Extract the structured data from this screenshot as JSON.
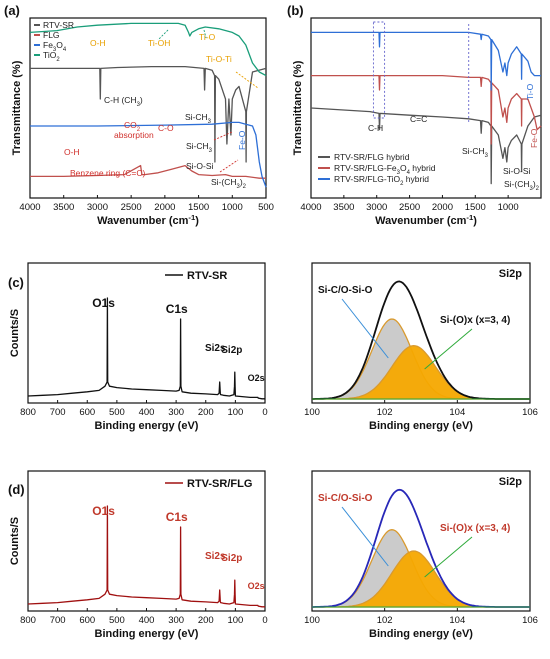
{
  "chart_data": [
    {
      "panel": "(a)",
      "type": "line",
      "xlabel": "Wavenumber (cm",
      "xlabel_sup": "-1",
      "xlabel_end": ")",
      "ylabel": "Transmittance (%)",
      "xlim": [
        4000,
        500
      ],
      "xticks": [
        "4000",
        "3500",
        "3000",
        "2500",
        "2000",
        "1500",
        "1000",
        "500"
      ],
      "legend": [
        "RTV-SR",
        "FLG",
        "Fe3O4",
        "TiO2"
      ],
      "series": [
        {
          "name": "RTV-SR",
          "color": "#555555",
          "x": [
            4000,
            3100,
            2965,
            2958,
            2950,
            2700,
            2200,
            1700,
            1420,
            1410,
            1400,
            1300,
            1262,
            1258,
            1250,
            1200,
            1100,
            1080,
            1050,
            1020,
            1000,
            950,
            900,
            800,
            795,
            790,
            700,
            500
          ],
          "y": [
            72,
            72,
            72,
            55,
            72,
            72.5,
            73,
            73,
            72,
            60,
            72,
            71,
            68,
            20,
            68,
            66,
            55,
            30,
            55,
            35,
            55,
            60,
            62,
            48,
            20,
            48,
            70,
            72
          ]
        },
        {
          "name": "FLG",
          "color": "#c0504d",
          "x": [
            4000,
            3500,
            3000,
            2600,
            2360,
            2340,
            2300,
            2100,
            1900,
            1700,
            1600,
            1500,
            1300,
            1100,
            1000,
            800,
            600,
            500
          ],
          "y": [
            12,
            12,
            12.5,
            13,
            18,
            13,
            13,
            14,
            16,
            18,
            15,
            13,
            12.5,
            13,
            12,
            12,
            11,
            11
          ]
        },
        {
          "name": "Fe3O4",
          "color": "#2e6fd6",
          "x": [
            4000,
            3000,
            2000,
            1300,
            1000,
            900,
            800,
            700,
            650,
            600,
            560,
            520,
            500
          ],
          "y": [
            40,
            40,
            40.5,
            41,
            42,
            42,
            41,
            40,
            35,
            20,
            12,
            8,
            6
          ]
        },
        {
          "name": "TiO2",
          "color": "#1a9e7a",
          "x": [
            4000,
            3600,
            3300,
            3000,
            2500,
            2000,
            1800,
            1700,
            1650,
            1630,
            1600,
            1500,
            1400,
            1200,
            1000,
            900,
            800,
            700,
            600,
            500
          ],
          "y": [
            92,
            93,
            95,
            96,
            97,
            97,
            97,
            96,
            92,
            90,
            92,
            94,
            95,
            94,
            92,
            90,
            85,
            75,
            70,
            68
          ]
        }
      ],
      "annotations": [
        {
          "text": "O-H",
          "color": "#e8a000"
        },
        {
          "text": "Ti-OH",
          "color": "#e8a000"
        },
        {
          "text": "Ti-O",
          "color": "#e8a000"
        },
        {
          "text": "Ti-O-Ti",
          "color": "#e8a000"
        },
        {
          "text": "C-H (CH",
          "sub": "3",
          "end": ")",
          "color": "#222222"
        },
        {
          "text": "Si-CH",
          "sub": "3",
          "end": "",
          "color": "#222222"
        },
        {
          "text": "Si-CH",
          "sub": "3",
          "end": "",
          "color": "#222222"
        },
        {
          "text": "Si-O-Si",
          "color": "#222222"
        },
        {
          "text": "Si-(CH",
          "sub": "3",
          "end": ")",
          "sub2": "2",
          "color": "#222222"
        },
        {
          "text": "Fe-O",
          "color": "#2e6fd6"
        },
        {
          "text": "O-H",
          "color": "#d0312d"
        },
        {
          "text": "CO",
          "sub": "2",
          "end": "",
          "color": "#d0312d"
        },
        {
          "text": "absorption",
          "color": "#d0312d"
        },
        {
          "text": "C-O",
          "color": "#d0312d"
        },
        {
          "text": "Benzene ring (C=C)",
          "color": "#d0312d"
        }
      ]
    },
    {
      "panel": "(b)",
      "type": "line",
      "xlabel": "Wavenumber (cm",
      "xlabel_sup": "-1",
      "xlabel_end": ")",
      "ylabel": "Transmittance (%)",
      "xlim": [
        4000,
        500
      ],
      "xticks": [
        "4000",
        "3500",
        "3000",
        "2500",
        "2000",
        "1500",
        "1000"
      ],
      "legend": [
        "RTV-SR/FLG hybrid",
        "RTV-SR/FLG-Fe3O4 hybrid",
        "RTV-SR/FLG-TiO2 hybrid"
      ],
      "series": [
        {
          "name": "RTV-SR/FLG hybrid",
          "color": "#555555",
          "x": [
            4000,
            3100,
            2965,
            2958,
            2950,
            2500,
            2000,
            1600,
            1420,
            1410,
            1400,
            1300,
            1262,
            1258,
            1250,
            1150,
            1080,
            1050,
            1020,
            1000,
            950,
            870,
            800,
            795,
            790,
            700,
            600,
            500
          ],
          "y": [
            50,
            48,
            47,
            38,
            47,
            46,
            45,
            44,
            43,
            36,
            43,
            42,
            40,
            8,
            40,
            35,
            22,
            28,
            20,
            28,
            32,
            35,
            30,
            15,
            30,
            40,
            45,
            46
          ]
        },
        {
          "name": "RTV-SR/FLG-Fe3O4 hybrid",
          "color": "#c0504d",
          "x": [
            4000,
            3100,
            2965,
            2958,
            2950,
            2500,
            2000,
            1600,
            1420,
            1410,
            1400,
            1300,
            1262,
            1258,
            1250,
            1150,
            1080,
            1050,
            1020,
            1000,
            950,
            870,
            800,
            795,
            790,
            700,
            600,
            560,
            500
          ],
          "y": [
            68,
            68,
            68,
            60,
            68,
            68,
            68,
            67,
            67,
            62,
            67,
            66,
            64,
            30,
            64,
            60,
            45,
            50,
            42,
            50,
            55,
            58,
            55,
            40,
            55,
            55,
            45,
            38,
            40
          ]
        },
        {
          "name": "RTV-SR/FLG-TiO2 hybrid",
          "color": "#2e6fd6",
          "x": [
            4000,
            3100,
            2965,
            2958,
            2950,
            2500,
            2000,
            1600,
            1420,
            1410,
            1400,
            1300,
            1262,
            1258,
            1250,
            1150,
            1080,
            1050,
            1020,
            1000,
            950,
            870,
            800,
            795,
            790,
            700,
            650,
            600,
            500
          ],
          "y": [
            92,
            92,
            92,
            84,
            92,
            92,
            92,
            92,
            91,
            88,
            91,
            90,
            88,
            60,
            88,
            82,
            70,
            75,
            68,
            75,
            80,
            84,
            80,
            66,
            80,
            76,
            70,
            68,
            68
          ]
        }
      ],
      "annotations": [
        {
          "text": "C-H",
          "color": "#222222"
        },
        {
          "text": "C=C",
          "color": "#222222"
        },
        {
          "text": "Si-CH",
          "sub": "3",
          "end": "",
          "color": "#222222"
        },
        {
          "text": "Si-O-Si",
          "color": "#222222"
        },
        {
          "text": "Si-(CH",
          "sub": "3",
          "end": ")",
          "sub2": "2",
          "color": "#222222"
        },
        {
          "text": "Ti-O",
          "color": "#2e6fd6"
        },
        {
          "text": "Fe-O",
          "color": "#c0504d"
        }
      ]
    },
    {
      "panel": "(c)",
      "type": "line",
      "xlabel": "Binding energy (eV)",
      "ylabel": "Counts/S",
      "xlim": [
        800,
        0
      ],
      "xticks": [
        "800",
        "700",
        "600",
        "500",
        "400",
        "300",
        "200",
        "100",
        "0"
      ],
      "legend": [
        "RTV-SR"
      ],
      "series": [
        {
          "name": "RTV-SR",
          "color": "#111111",
          "x": [
            800,
            750,
            700,
            650,
            600,
            560,
            540,
            533,
            532,
            531,
            525,
            500,
            450,
            400,
            350,
            300,
            290,
            286,
            285,
            284,
            280,
            250,
            200,
            160,
            155,
            153,
            151,
            150,
            140,
            120,
            105,
            103,
            102,
            101,
            100,
            50,
            24,
            23,
            10,
            0
          ],
          "y": [
            5,
            5.5,
            6,
            7,
            8,
            9,
            12,
            15,
            75,
            15,
            12,
            11,
            10,
            9.5,
            9,
            8.5,
            9,
            12,
            60,
            12,
            8,
            7,
            6.5,
            6,
            7,
            15,
            7,
            6,
            5.5,
            5,
            6,
            12,
            22,
            12,
            5,
            4,
            4,
            3.5,
            3,
            3
          ]
        }
      ],
      "peak_labels": [
        "O1s",
        "C1s",
        "Si2s",
        "Si2p",
        "O2s"
      ]
    },
    {
      "panel": "(c-right)",
      "type": "area",
      "xlabel": "Binding energy (eV)",
      "title_right": "Si2p",
      "xlim": [
        100,
        106
      ],
      "xticks": [
        "100",
        "102",
        "104",
        "106"
      ],
      "components": [
        {
          "name": "Si-C/O-Si-O",
          "center": 102.2,
          "amp": 60,
          "sigma": 0.55,
          "fill": "#c8c8c8",
          "stroke": "#d99a2e"
        },
        {
          "name": "Si-(O)x (x=3, 4)",
          "center": 102.8,
          "amp": 40,
          "sigma": 0.6,
          "fill": "#f5a800",
          "stroke": "#d99a2e"
        }
      ],
      "envelope_color": "#111111",
      "labels": [
        {
          "text": "Si-C/O-Si-O",
          "color": "#111111"
        },
        {
          "text": "Si-(O)x (x=3, 4)",
          "color": "#111111"
        }
      ]
    },
    {
      "panel": "(d)",
      "type": "line",
      "xlabel": "Binding energy (eV)",
      "ylabel": "Counts/S",
      "xlim": [
        800,
        0
      ],
      "xticks": [
        "800",
        "700",
        "600",
        "500",
        "400",
        "300",
        "200",
        "100",
        "0"
      ],
      "legend": [
        "RTV-SR/FLG"
      ],
      "series": [
        {
          "name": "RTV-SR/FLG",
          "color": "#a01010",
          "x": [
            800,
            750,
            700,
            650,
            600,
            560,
            540,
            533,
            532,
            531,
            525,
            500,
            450,
            400,
            350,
            300,
            290,
            286,
            285,
            284,
            280,
            250,
            200,
            160,
            155,
            153,
            151,
            150,
            140,
            120,
            105,
            103,
            102,
            101,
            100,
            50,
            24,
            23,
            10,
            0
          ],
          "y": [
            5,
            5.5,
            6,
            7,
            8,
            9,
            12,
            15,
            75,
            15,
            12,
            11,
            10,
            9.5,
            9,
            8.5,
            9,
            12,
            60,
            12,
            8,
            7,
            6.5,
            6,
            7,
            15,
            7,
            6,
            5.5,
            5,
            6,
            12,
            22,
            12,
            5,
            4,
            4,
            3.5,
            3,
            3
          ]
        }
      ],
      "peak_labels": [
        "O1s",
        "C1s",
        "Si2s",
        "Si2p",
        "O2s"
      ]
    },
    {
      "panel": "(d-right)",
      "type": "area",
      "xlabel": "Binding energy (eV)",
      "title_right": "Si2p",
      "xlim": [
        100,
        106
      ],
      "xticks": [
        "100",
        "102",
        "104",
        "106"
      ],
      "components": [
        {
          "name": "Si-C/O-Si-O",
          "center": 102.2,
          "amp": 58,
          "sigma": 0.55,
          "fill": "#c8c8c8",
          "stroke": "#d99a2e"
        },
        {
          "name": "Si-(O)x (x=3, 4)",
          "center": 102.8,
          "amp": 42,
          "sigma": 0.6,
          "fill": "#f5a800",
          "stroke": "#d99a2e"
        }
      ],
      "envelope_color": "#2828b8",
      "labels": [
        {
          "text": "Si-C/O-Si-O",
          "color": "#c0392b"
        },
        {
          "text": "Si-(O)x (x=3, 4)",
          "color": "#c0392b"
        }
      ]
    }
  ]
}
